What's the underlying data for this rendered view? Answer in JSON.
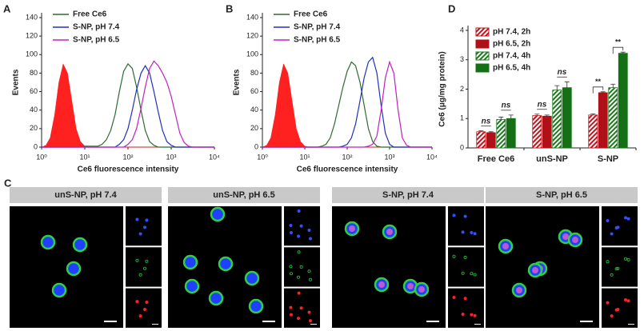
{
  "chart_data": [
    {
      "type": "line",
      "panel": "A",
      "xlabel": "Ce6 fluorescence intensity",
      "ylabel": "Events",
      "xscale": "log",
      "xlim": [
        1,
        10000
      ],
      "xticks": [
        {
          "value": 1,
          "label": "10⁰"
        },
        {
          "value": 10,
          "label": "10¹"
        },
        {
          "value": 100,
          "label": "10²"
        },
        {
          "value": 1000,
          "label": "10³"
        },
        {
          "value": 10000,
          "label": "10⁴"
        }
      ],
      "ylim": [
        0,
        140
      ],
      "yticks": [
        0,
        20,
        40,
        60,
        80,
        100,
        120,
        140
      ],
      "legend": "upper left",
      "x": [
        1,
        1.26,
        1.58,
        2,
        2.51,
        3.16,
        3.98,
        5.01,
        6.31,
        7.94,
        10,
        12.6,
        15.8,
        20,
        25.1,
        31.6,
        39.8,
        50.1,
        63.1,
        79.4,
        100,
        126,
        158,
        200,
        251,
        316,
        398,
        501,
        631,
        794,
        1000,
        1259,
        1585,
        1995,
        2512,
        3162,
        3981,
        5012,
        6310,
        7943,
        10000
      ],
      "series": [
        {
          "color": "#ff2020",
          "fill": true,
          "values": [
            0,
            2,
            10,
            35,
            70,
            90,
            80,
            50,
            20,
            6,
            1,
            0,
            0,
            0,
            0,
            0,
            0,
            0,
            0,
            0,
            0,
            0,
            0,
            0,
            0,
            0,
            0,
            0,
            0,
            0,
            0,
            0,
            0,
            0,
            0,
            0,
            0,
            0,
            0,
            0,
            0
          ]
        },
        {
          "name": "Free Ce6",
          "color": "#2e6b2e",
          "values": [
            0,
            0,
            0,
            0,
            0,
            0,
            0,
            0,
            0,
            0,
            1,
            1,
            1,
            1,
            3,
            8,
            18,
            35,
            60,
            82,
            90,
            85,
            65,
            40,
            18,
            6,
            2,
            0,
            0,
            0,
            0,
            0,
            0,
            0,
            0,
            0,
            0,
            0,
            0,
            0,
            0
          ]
        },
        {
          "name": "S-NP, pH 7.4",
          "color": "#2030c0",
          "values": [
            0,
            0,
            0,
            0,
            0,
            0,
            0,
            0,
            0,
            0,
            0,
            0,
            0,
            0,
            0,
            0,
            0,
            0,
            3,
            8,
            20,
            40,
            62,
            80,
            88,
            80,
            60,
            38,
            18,
            6,
            2,
            0,
            0,
            0,
            0,
            0,
            0,
            0,
            0,
            0,
            0
          ]
        },
        {
          "name": "S-NP, pH 6.5",
          "color": "#c020c0",
          "values": [
            0,
            0,
            0,
            0,
            0,
            0,
            0,
            0,
            0,
            0,
            0,
            0,
            0,
            0,
            0,
            0,
            0,
            0,
            0,
            0,
            3,
            8,
            20,
            42,
            65,
            85,
            93,
            88,
            80,
            70,
            55,
            35,
            15,
            5,
            1,
            0,
            0,
            0,
            0,
            0,
            0
          ]
        }
      ]
    },
    {
      "type": "line",
      "panel": "B",
      "xlabel": "Ce6 fluorescence intensity",
      "ylabel": "Events",
      "xscale": "log",
      "xlim": [
        1,
        10000
      ],
      "xticks": [
        {
          "value": 1,
          "label": "10⁰"
        },
        {
          "value": 10,
          "label": "10¹"
        },
        {
          "value": 100,
          "label": "10²"
        },
        {
          "value": 1000,
          "label": "10³"
        },
        {
          "value": 10000,
          "label": "10⁴"
        }
      ],
      "ylim": [
        0,
        140
      ],
      "yticks": [
        0,
        20,
        40,
        60,
        80,
        100,
        120,
        140
      ],
      "legend": "upper left",
      "x": [
        1,
        1.26,
        1.58,
        2,
        2.51,
        3.16,
        3.98,
        5.01,
        6.31,
        7.94,
        10,
        12.6,
        15.8,
        20,
        25.1,
        31.6,
        39.8,
        50.1,
        63.1,
        79.4,
        100,
        126,
        158,
        200,
        251,
        316,
        398,
        501,
        631,
        794,
        1000,
        1259,
        1585,
        1995,
        2512,
        3162,
        3981,
        5012,
        6310,
        7943,
        10000
      ],
      "series": [
        {
          "color": "#ff2020",
          "fill": true,
          "values": [
            0,
            2,
            10,
            35,
            70,
            90,
            80,
            50,
            20,
            6,
            1,
            0,
            0,
            0,
            0,
            0,
            0,
            0,
            0,
            0,
            0,
            0,
            0,
            0,
            0,
            0,
            0,
            0,
            0,
            0,
            0,
            0,
            0,
            0,
            0,
            0,
            0,
            0,
            0,
            0,
            0
          ]
        },
        {
          "name": "Free Ce6",
          "color": "#2e6b2e",
          "values": [
            0,
            0,
            0,
            0,
            0,
            0,
            0,
            0,
            0,
            0,
            0,
            0,
            0,
            0,
            1,
            3,
            10,
            25,
            45,
            65,
            82,
            92,
            88,
            70,
            45,
            20,
            6,
            1,
            0,
            0,
            0,
            0,
            0,
            0,
            0,
            0,
            0,
            0,
            0,
            0,
            0
          ]
        },
        {
          "name": "S-NP, pH 7.4",
          "color": "#2030c0",
          "values": [
            0,
            0,
            0,
            0,
            0,
            0,
            0,
            0,
            0,
            0,
            0,
            0,
            0,
            0,
            0,
            0,
            0,
            0,
            0,
            1,
            3,
            10,
            25,
            50,
            75,
            92,
            97,
            80,
            45,
            15,
            3,
            0,
            0,
            0,
            0,
            0,
            0,
            0,
            0,
            0,
            0
          ]
        },
        {
          "name": "S-NP, pH 6.5",
          "color": "#c020c0",
          "values": [
            0,
            0,
            0,
            0,
            0,
            0,
            0,
            0,
            0,
            0,
            0,
            0,
            0,
            0,
            0,
            0,
            0,
            0,
            0,
            0,
            0,
            0,
            0,
            0,
            0,
            1,
            3,
            12,
            40,
            75,
            92,
            80,
            40,
            10,
            2,
            0,
            0,
            0,
            0,
            0,
            0
          ]
        }
      ]
    },
    {
      "type": "bar",
      "panel": "D",
      "ylabel": "Ce6 (μg/mg protein)",
      "ylim": [
        0,
        4
      ],
      "yticks": [
        0,
        1,
        2,
        3,
        4
      ],
      "legend": "upper left",
      "categories": [
        "Free Ce6",
        "unS-NP",
        "S-NP"
      ],
      "series": [
        {
          "name": "pH 7.4, 2h",
          "color": "#c0141c",
          "hatch": true,
          "values": [
            0.55,
            1.1,
            1.12
          ],
          "errors": [
            0.03,
            0.05,
            0.04
          ]
        },
        {
          "name": "pH 6.5, 2h",
          "color": "#b01018",
          "hatch": false,
          "values": [
            0.52,
            1.08,
            1.88
          ],
          "errors": [
            0.03,
            0.04,
            0.03
          ]
        },
        {
          "name": "pH 7.4, 4h",
          "color": "#1a7a1a",
          "hatch": true,
          "values": [
            0.97,
            1.97,
            2.05
          ],
          "errors": [
            0.08,
            0.15,
            0.12
          ]
        },
        {
          "name": "pH 6.5, 4h",
          "color": "#157015",
          "hatch": false,
          "values": [
            1.0,
            2.05,
            3.22
          ],
          "errors": [
            0.12,
            0.2,
            0.04
          ]
        }
      ],
      "annotations": [
        "ns",
        "ns",
        "ns",
        "ns",
        "**",
        "**"
      ]
    }
  ],
  "panel_c": {
    "panel": "C",
    "images": [
      "unS-NP, pH 7.4",
      "unS-NP, pH 6.5",
      "S-NP, pH 7.4",
      "S-NP, pH 6.5"
    ]
  }
}
